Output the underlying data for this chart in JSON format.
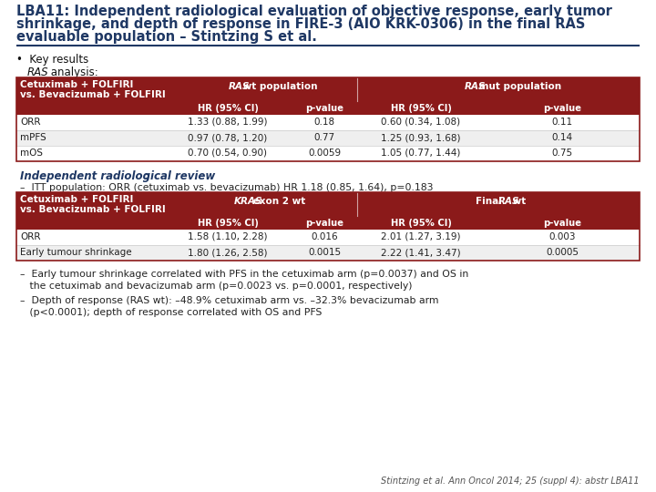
{
  "title_lines": [
    "LBA11: Independent radiological evaluation of objective response, early tumor",
    "shrinkage, and depth of response in FIRE-3 (AIO KRK-0306) in the final RAS",
    "evaluable population – Stintzing S et al."
  ],
  "title_color": "#1F3864",
  "title_fontsize": 10.5,
  "bg_color": "#FFFFFF",
  "header_bg": "#8B1A1A",
  "row_bg_even": "#FFFFFF",
  "row_bg_odd": "#EFEFEF",
  "table_border_color": "#8B1A1A",
  "table1_rows": [
    [
      "ORR",
      "1.33 (0.88, 1.99)",
      "0.18",
      "0.60 (0.34, 1.08)",
      "0.11"
    ],
    [
      "mPFS",
      "0.97 (0.78, 1.20)",
      "0.77",
      "1.25 (0.93, 1.68)",
      "0.14"
    ],
    [
      "mOS",
      "0.70 (0.54, 0.90)",
      "0.0059",
      "1.05 (0.77, 1.44)",
      "0.75"
    ]
  ],
  "table2_rows": [
    [
      "ORR",
      "1.58 (1.10, 2.28)",
      "0.016",
      "2.01 (1.27, 3.19)",
      "0.003"
    ],
    [
      "Early tumour shrinkage",
      "1.80 (1.26, 2.58)",
      "0.0015",
      "2.22 (1.41, 3.47)",
      "0.0005"
    ]
  ],
  "subheaders": [
    "HR (95% CI)",
    "p-value",
    "HR (95% CI)",
    "p-value"
  ],
  "irr_bullet": "–  ITT population: ORR (cetuximab vs. bevacizumab) HR 1.18 (0.85, 1.64), p=0.183",
  "bullet1_a": "–  Early tumour shrinkage correlated with PFS in the cetuximab arm (p=0.0037) and OS in",
  "bullet1_b": "   the cetuximab and bevacizumab arm (p=0.0023 vs. p=0.0001, respectively)",
  "bullet2_a": "–  Depth of response (RAS wt): –48.9% cetuximab arm vs. –32.3% bevacizumab arm",
  "bullet2_b": "   (p<0.0001); depth of response correlated with OS and PFS",
  "citation": "Stintzing et al. Ann Oncol 2014; 25 (suppl 4): abstr LBA11"
}
